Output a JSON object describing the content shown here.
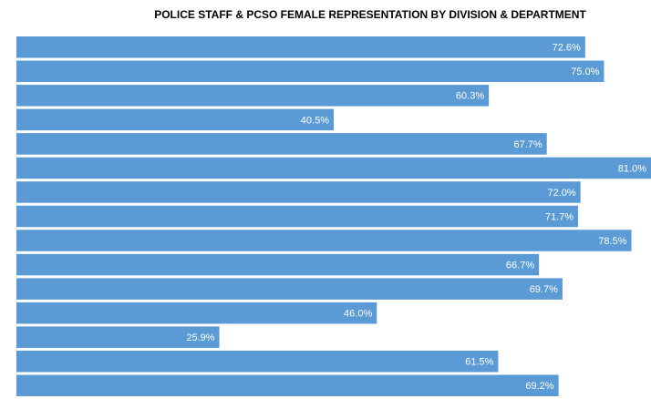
{
  "chart_data": {
    "type": "barh",
    "title": "POLICE STAFF & PCSO FEMALE REPRESENTATION BY DIVISION & DEPARTMENT",
    "categories": [
      null,
      null,
      null,
      null,
      null,
      null,
      null,
      null,
      null,
      null,
      null,
      null,
      null,
      null,
      null
    ],
    "values": [
      72.6,
      75.0,
      60.3,
      40.5,
      67.7,
      81.0,
      72.0,
      71.7,
      78.5,
      66.7,
      69.7,
      46.0,
      25.9,
      61.5,
      69.2
    ],
    "value_labels": [
      "72.6%",
      "75.0%",
      "60.3%",
      "40.5%",
      "67.7%",
      "81.0%",
      "72.0%",
      "71.7%",
      "78.5%",
      "66.7%",
      "69.7%",
      "46.0%",
      "25.9%",
      "61.5%",
      "69.2%"
    ],
    "color": "#5b9bd5",
    "xlim": [
      0,
      81
    ]
  }
}
